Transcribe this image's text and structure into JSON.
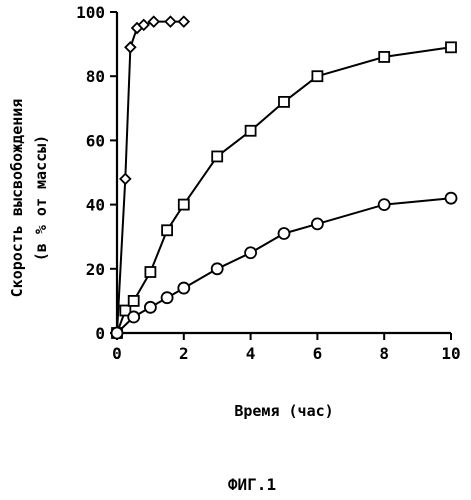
{
  "chart_data": {
    "type": "line",
    "title": "",
    "xlabel": "Время (час)",
    "ylabel_line1": "Скорость высвобождения",
    "ylabel_line2": "(в % от массы)",
    "xlim": [
      0,
      10
    ],
    "ylim": [
      0,
      100
    ],
    "x_ticks": [
      0,
      2,
      4,
      6,
      8,
      10
    ],
    "y_ticks": [
      0,
      20,
      40,
      60,
      80,
      100
    ],
    "grid": false,
    "legend": "none",
    "series": [
      {
        "marker": "diamond",
        "x": [
          0,
          0.25,
          0.4,
          0.6,
          0.8,
          1.1,
          1.6,
          2.0
        ],
        "y": [
          0,
          48,
          89,
          95,
          96,
          97,
          97,
          97
        ]
      },
      {
        "marker": "square",
        "x": [
          0,
          0.25,
          0.5,
          1.0,
          1.5,
          2.0,
          3.0,
          4.0,
          5.0,
          6.0,
          8.0,
          10.0
        ],
        "y": [
          0,
          7,
          10,
          19,
          32,
          40,
          55,
          63,
          72,
          80,
          86,
          89
        ]
      },
      {
        "marker": "circle",
        "x": [
          0,
          0.5,
          1.0,
          1.5,
          2.0,
          3.0,
          4.0,
          5.0,
          6.0,
          8.0,
          10.0
        ],
        "y": [
          0,
          5,
          8,
          11,
          14,
          20,
          25,
          31,
          34,
          40,
          42
        ]
      }
    ]
  },
  "caption": "ФИГ.1"
}
